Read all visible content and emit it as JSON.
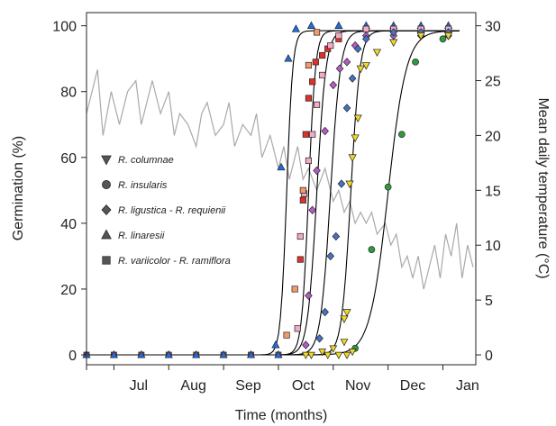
{
  "chart_data": {
    "type": "scatter",
    "xlabel": "Time (months)",
    "ylabel": "Germination (%)",
    "y2label": "Mean daily temperature (°C)",
    "x_ticks": [
      "Jul",
      "Aug",
      "Sep",
      "Oct",
      "Nov",
      "Dec",
      "Jan"
    ],
    "y_ticks": [
      0,
      20,
      40,
      60,
      80,
      100
    ],
    "y2_ticks": [
      0,
      5,
      10,
      15,
      20,
      25,
      30
    ],
    "xlim": [
      0,
      7.1
    ],
    "ylim": [
      -3,
      104
    ],
    "y2lim": [
      -0.9,
      31.2
    ],
    "legend": [
      {
        "label": "R. columnae",
        "marker": "triangle-down"
      },
      {
        "label": "R. insularis",
        "marker": "circle"
      },
      {
        "label": "R. ligustica  - R. requienii",
        "marker": "diamond"
      },
      {
        "label": "R. linaresii",
        "marker": "triangle-up"
      },
      {
        "label": "R. variicolor  - R. ramiflora",
        "marker": "square"
      }
    ],
    "legend_position": "left",
    "colors": {
      "columnae": "#f0d824",
      "insularis": "#2f9a3f",
      "ligustica": "#b45cc6",
      "requienii": "#4472c4",
      "linaresii": "#1f6ee0",
      "variicolor": "#e0302a",
      "ramiflora": "#f4a9c4",
      "variicolor_alt": "#f39a6a",
      "temperature": "#a9a9a9",
      "fit": "#000000",
      "legend_marker": "#555555"
    },
    "baseline_x": [
      0,
      0.5,
      1,
      1.5,
      2,
      2.5,
      3,
      3.5
    ],
    "series": [
      {
        "name": "R. linaresii",
        "color": "#1f6ee0",
        "marker": "triangle-up",
        "x": [
          3.45,
          3.55,
          3.68,
          3.82,
          4.1,
          4.6,
          5.1,
          5.6,
          6.1,
          6.6
        ],
        "y": [
          3,
          57,
          90,
          99,
          100,
          100,
          100,
          100,
          100,
          100
        ]
      },
      {
        "name": "R. variicolor",
        "color": "#e0302a",
        "marker": "square",
        "x": [
          3.9,
          3.95,
          4.0,
          4.05,
          4.12,
          4.18,
          4.3,
          4.4,
          4.6,
          5.1,
          5.6,
          6.1,
          6.6
        ],
        "y": [
          29,
          47,
          67,
          78,
          83,
          89,
          91,
          93,
          96,
          99,
          99,
          99,
          99
        ]
      },
      {
        "name": "R. ramiflora",
        "color": "#f4a9c4",
        "marker": "square",
        "x": [
          3.85,
          3.9,
          3.97,
          4.05,
          4.12,
          4.2,
          4.3,
          4.45,
          4.6,
          5.1,
          5.6,
          6.1,
          6.6
        ],
        "y": [
          8,
          36,
          49,
          59,
          67,
          76,
          85,
          94,
          97,
          99,
          99,
          99,
          99
        ]
      },
      {
        "name": "R. variicolor",
        "color": "#f39a6a",
        "marker": "square",
        "x": [
          3.65,
          3.8,
          3.95,
          4.05,
          4.2
        ],
        "y": [
          6,
          20,
          50,
          88,
          98
        ]
      },
      {
        "name": "R. ligustica",
        "color": "#b45cc6",
        "marker": "diamond",
        "x": [
          4.0,
          4.05,
          4.12,
          4.2,
          4.35,
          4.5,
          4.62,
          4.75,
          4.9,
          5.1,
          5.6,
          6.1,
          6.6
        ],
        "y": [
          3,
          18,
          44,
          56,
          68,
          82,
          87,
          89,
          94,
          97,
          97,
          97,
          97
        ]
      },
      {
        "name": "R. requienii",
        "color": "#4472c4",
        "marker": "diamond",
        "x": [
          4.25,
          4.35,
          4.45,
          4.55,
          4.65,
          4.75,
          4.85,
          4.95,
          5.1,
          5.6,
          6.1,
          6.6
        ],
        "y": [
          5,
          13,
          30,
          36,
          52,
          75,
          84,
          93,
          96,
          98,
          98,
          98
        ]
      },
      {
        "name": "R. columnae",
        "color": "#f0d824",
        "marker": "triangle-down",
        "x": [
          4.7,
          4.75,
          4.8,
          4.85,
          4.9,
          4.95,
          5.0,
          5.1,
          5.3,
          5.6,
          6.1,
          6.6
        ],
        "y": [
          11,
          13,
          52,
          60,
          66,
          72,
          87,
          88,
          92,
          95,
          97,
          97
        ]
      },
      {
        "name": "R. insularis",
        "color": "#2f9a3f",
        "marker": "circle",
        "x": [
          4.9,
          5.2,
          5.5,
          5.75,
          6.0,
          6.5
        ],
        "y": [
          2,
          32,
          51,
          67,
          89,
          96
        ]
      }
    ],
    "fits": [
      {
        "mid": 3.65,
        "k": 18
      },
      {
        "mid": 4.05,
        "k": 16
      },
      {
        "mid": 4.2,
        "k": 12
      },
      {
        "mid": 4.45,
        "k": 11
      },
      {
        "mid": 4.82,
        "k": 12
      },
      {
        "mid": 5.5,
        "k": 6
      }
    ],
    "temperature": {
      "x": [
        0,
        0.2,
        0.3,
        0.45,
        0.6,
        0.75,
        0.9,
        1.0,
        1.1,
        1.2,
        1.35,
        1.5,
        1.6,
        1.7,
        1.85,
        2.0,
        2.1,
        2.2,
        2.35,
        2.5,
        2.6,
        2.7,
        2.85,
        3.0,
        3.1,
        3.2,
        3.35,
        3.5,
        3.6,
        3.7,
        3.85,
        3.95,
        4.05,
        4.2,
        4.35,
        4.5,
        4.6,
        4.7,
        4.8,
        4.9,
        5.0,
        5.1,
        5.2,
        5.3,
        5.45,
        5.55,
        5.65,
        5.75,
        5.85,
        5.95,
        6.05,
        6.15,
        6.25,
        6.35,
        6.45,
        6.55,
        6.65,
        6.75,
        6.85,
        6.95,
        7.05
      ],
      "y": [
        22,
        26,
        20,
        24,
        21,
        24,
        25,
        21,
        23,
        25,
        22,
        24,
        20,
        22,
        21,
        19,
        22,
        23,
        20,
        21,
        23,
        19,
        21,
        20,
        22,
        18,
        20,
        17,
        19,
        16,
        19,
        16,
        17,
        15,
        17,
        14,
        15,
        13,
        14,
        12,
        13,
        12,
        13,
        11,
        12,
        10,
        11,
        8,
        9,
        7,
        9,
        6,
        8,
        10,
        7,
        11,
        9,
        12,
        7,
        10,
        8
      ]
    }
  }
}
